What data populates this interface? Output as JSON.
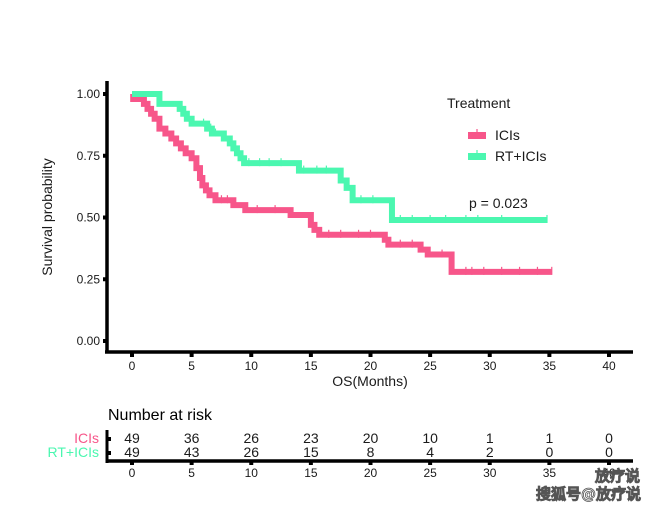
{
  "chart_data": {
    "type": "line",
    "subtype": "kaplan-meier",
    "title": "",
    "xlabel": "OS(Months)",
    "ylabel": "Survival probability",
    "xlim": [
      -2,
      42
    ],
    "ylim": [
      0,
      1.05
    ],
    "x_ticks": [
      0,
      5,
      10,
      15,
      20,
      25,
      30,
      35,
      40
    ],
    "y_ticks": [
      0.0,
      0.25,
      0.5,
      0.75,
      1.0
    ],
    "y_tick_labels": [
      "0.00",
      "0.25",
      "0.50",
      "0.75",
      "1.00"
    ],
    "grid": false,
    "legend": {
      "title": "Treatment",
      "position": "top-right",
      "entries": [
        {
          "label": "ICIs",
          "color": "#f7568a"
        },
        {
          "label": "RT+ICIs",
          "color": "#4bf7b0"
        }
      ]
    },
    "annotation": "p = 0.023",
    "series": [
      {
        "name": "ICIs",
        "color": "#f7568a",
        "steps": [
          [
            0,
            1.0
          ],
          [
            0.1,
            0.98
          ],
          [
            1.0,
            0.96
          ],
          [
            1.3,
            0.94
          ],
          [
            1.6,
            0.92
          ],
          [
            1.9,
            0.9
          ],
          [
            2.3,
            0.86
          ],
          [
            2.8,
            0.84
          ],
          [
            3.3,
            0.82
          ],
          [
            3.7,
            0.8
          ],
          [
            4.1,
            0.78
          ],
          [
            4.5,
            0.76
          ],
          [
            5.0,
            0.74
          ],
          [
            5.4,
            0.7
          ],
          [
            5.7,
            0.66
          ],
          [
            5.9,
            0.63
          ],
          [
            6.2,
            0.61
          ],
          [
            6.5,
            0.59
          ],
          [
            7.0,
            0.57
          ],
          [
            8.5,
            0.55
          ],
          [
            9.5,
            0.53
          ],
          [
            13.3,
            0.51
          ],
          [
            15.0,
            0.47
          ],
          [
            15.3,
            0.45
          ],
          [
            15.7,
            0.43
          ],
          [
            21.2,
            0.41
          ],
          [
            21.5,
            0.39
          ],
          [
            24.2,
            0.37
          ],
          [
            24.8,
            0.35
          ],
          [
            26.8,
            0.28
          ],
          [
            35.2,
            0.28
          ]
        ],
        "censor_times": [
          7.5,
          8.0,
          10.5,
          12.0,
          16.5,
          17.5,
          19.0,
          20.0,
          22.5,
          23.5,
          26.0,
          28.0,
          28.5,
          29.5,
          31.0,
          32.5,
          34.0,
          35.2
        ]
      },
      {
        "name": "RT+ICIs",
        "color": "#4bf7b0",
        "steps": [
          [
            0,
            1.0
          ],
          [
            2.3,
            0.96
          ],
          [
            4.0,
            0.94
          ],
          [
            4.3,
            0.92
          ],
          [
            4.6,
            0.9
          ],
          [
            5.0,
            0.88
          ],
          [
            6.3,
            0.86
          ],
          [
            6.7,
            0.84
          ],
          [
            7.7,
            0.82
          ],
          [
            8.2,
            0.8
          ],
          [
            8.5,
            0.78
          ],
          [
            8.8,
            0.76
          ],
          [
            9.1,
            0.74
          ],
          [
            9.4,
            0.72
          ],
          [
            14.0,
            0.69
          ],
          [
            17.5,
            0.65
          ],
          [
            18.0,
            0.62
          ],
          [
            18.5,
            0.57
          ],
          [
            21.8,
            0.49
          ],
          [
            34.8,
            0.49
          ]
        ],
        "censor_times": [
          6.0,
          6.3,
          6.6,
          7.0,
          9.8,
          10.7,
          11.5,
          12.5,
          14.4,
          15.5,
          16.3,
          19.2,
          20.2,
          22.5,
          23.5,
          25.0,
          26.3,
          28.0,
          29.0,
          31.0,
          34.8
        ]
      }
    ],
    "risk_table": {
      "title": "Number at risk",
      "times": [
        0,
        5,
        10,
        15,
        20,
        25,
        30,
        35,
        40
      ],
      "rows": [
        {
          "label": "ICIs",
          "color": "#f7568a",
          "values": [
            49,
            36,
            26,
            23,
            20,
            10,
            1,
            1,
            0
          ]
        },
        {
          "label": "RT+ICIs",
          "color": "#4bf7b0",
          "values": [
            49,
            43,
            26,
            15,
            8,
            4,
            2,
            0,
            0
          ]
        }
      ]
    }
  },
  "watermark": {
    "top": "放疗说",
    "bottom": "搜狐号@放疗说"
  }
}
